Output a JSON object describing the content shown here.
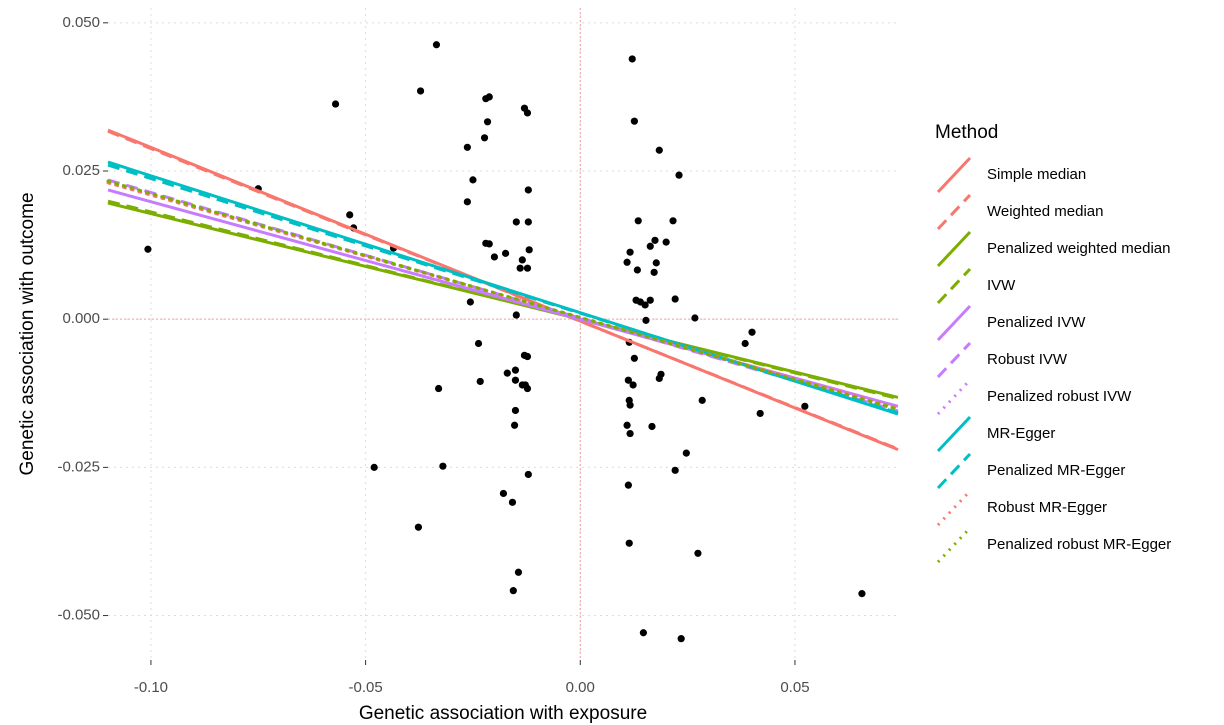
{
  "chart_data": {
    "type": "scatter",
    "x_label": "Genetic association with exposure",
    "y_label": "Genetic association with outcome",
    "legend_title": "Method",
    "xlim": [
      -0.11,
      0.074
    ],
    "ylim": [
      -0.0575,
      0.0525
    ],
    "xticks": [
      {
        "value": -0.1,
        "label": "-0.10"
      },
      {
        "value": -0.05,
        "label": "-0.05"
      },
      {
        "value": 0,
        "label": "0.00"
      },
      {
        "value": 0.05,
        "label": "0.05"
      }
    ],
    "yticks": [
      {
        "value": 0.05,
        "label": "0.050"
      },
      {
        "value": 0.025,
        "label": "0.025"
      },
      {
        "value": 0,
        "label": "0.000"
      },
      {
        "value": -0.025,
        "label": "-0.025"
      },
      {
        "value": -0.05,
        "label": "-0.050"
      }
    ],
    "grid": true,
    "reference_color": "#f4a0a0",
    "hline": 0,
    "vline": 0,
    "points": {
      "color": "#000000",
      "x": [
        -0.1007,
        -0.057,
        -0.075,
        -0.0537,
        -0.0528,
        -0.0435,
        -0.048,
        -0.0372,
        -0.0335,
        -0.0377,
        -0.033,
        -0.032,
        -0.0263,
        -0.025,
        -0.0263,
        -0.0256,
        -0.0237,
        -0.0233,
        -0.0223,
        -0.022,
        -0.0212,
        -0.0216,
        -0.022,
        -0.0212,
        -0.02,
        -0.0174,
        -0.0179,
        -0.017,
        -0.0158,
        -0.0156,
        -0.0151,
        -0.0151,
        -0.0151,
        -0.0153,
        -0.0149,
        -0.0149,
        -0.0144,
        -0.014,
        -0.0135,
        -0.0135,
        -0.013,
        -0.0123,
        -0.013,
        -0.0123,
        -0.0123,
        -0.0121,
        -0.0121,
        -0.0119,
        -0.0128,
        -0.0123,
        -0.0121,
        0.0121,
        0.0126,
        0.0109,
        0.0116,
        0.0114,
        0.0112,
        0.0114,
        0.0116,
        0.0109,
        0.0116,
        0.0112,
        0.0114,
        0.0126,
        0.0123,
        0.013,
        0.0135,
        0.0133,
        0.014,
        0.0147,
        0.0151,
        0.0153,
        0.0163,
        0.0163,
        0.0167,
        0.0172,
        0.0177,
        0.0174,
        0.0184,
        0.0184,
        0.0188,
        0.02,
        0.0216,
        0.0221,
        0.0221,
        0.023,
        0.0235,
        0.0247,
        0.0267,
        0.0274,
        0.0284,
        0.0384,
        0.04,
        0.0419,
        0.0523,
        0.0656
      ],
      "values": [
        0.0118,
        0.0363,
        0.022,
        0.0176,
        0.0154,
        0.012,
        -0.025,
        0.0385,
        0.0463,
        -0.0351,
        -0.0117,
        -0.0248,
        0.029,
        0.0235,
        0.0198,
        0.0029,
        -0.0041,
        -0.0105,
        0.0306,
        0.0372,
        0.0375,
        0.0333,
        0.0128,
        0.0127,
        0.0105,
        0.0111,
        -0.0294,
        -0.0091,
        -0.0309,
        -0.0458,
        -0.0086,
        -0.0103,
        -0.0154,
        -0.0179,
        0.0007,
        0.0164,
        -0.0427,
        0.0086,
        -0.0111,
        0.01,
        0.0356,
        0.0348,
        -0.0061,
        -0.0063,
        0.0086,
        0.0218,
        0.0164,
        0.0117,
        -0.0111,
        -0.0117,
        -0.0262,
        0.0439,
        0.0334,
        0.0096,
        0.0113,
        -0.0039,
        -0.0103,
        -0.0137,
        -0.0145,
        -0.0179,
        -0.0193,
        -0.028,
        -0.0378,
        -0.0066,
        -0.0111,
        0.0032,
        0.0166,
        0.0083,
        0.0029,
        -0.0529,
        0.0024,
        -0.0002,
        0.0032,
        0.0123,
        -0.0181,
        0.0079,
        0.0095,
        0.0133,
        0.0285,
        -0.01,
        -0.0093,
        0.013,
        0.0166,
        0.0034,
        -0.0255,
        0.0243,
        -0.0539,
        -0.0226,
        0.0002,
        -0.0395,
        -0.0137,
        -0.0041,
        -0.0022,
        -0.0159,
        -0.0147,
        -0.0463
      ]
    },
    "series": [
      {
        "name": "Simple median",
        "color": "#F8766D",
        "dash": "solid",
        "x": [
          -0.11,
          0.074
        ],
        "values": [
          0.0319,
          -0.022
        ]
      },
      {
        "name": "Weighted median",
        "color": "#F8766D",
        "dash": "dashed",
        "x": [
          -0.11,
          0.074
        ],
        "values": [
          0.0317,
          -0.0219
        ]
      },
      {
        "name": "Penalized weighted median",
        "color": "#7CAE00",
        "dash": "solid",
        "x": [
          -0.11,
          0.074
        ],
        "values": [
          0.0196,
          -0.0132
        ]
      },
      {
        "name": "IVW",
        "color": "#7CAE00",
        "dash": "dashed",
        "x": [
          -0.11,
          0.074
        ],
        "values": [
          0.0199,
          -0.0134
        ]
      },
      {
        "name": "Penalized IVW",
        "color": "#C77CFF",
        "dash": "solid",
        "x": [
          -0.11,
          0.074
        ],
        "values": [
          0.0218,
          -0.0147
        ]
      },
      {
        "name": "Robust IVW",
        "color": "#C77CFF",
        "dash": "dashed",
        "x": [
          -0.11,
          0.074
        ],
        "values": [
          0.0235,
          -0.0155
        ]
      },
      {
        "name": "Penalized robust IVW",
        "color": "#C77CFF",
        "dash": "dotted",
        "x": [
          -0.11,
          0.074
        ],
        "values": [
          0.0232,
          -0.0153
        ]
      },
      {
        "name": "MR-Egger",
        "color": "#00BFC4",
        "dash": "solid",
        "x": [
          -0.11,
          0.074
        ],
        "values": [
          0.0265,
          -0.016
        ]
      },
      {
        "name": "Penalized MR-Egger",
        "color": "#00BFC4",
        "dash": "dashed",
        "x": [
          -0.11,
          0.074
        ],
        "values": [
          0.026,
          -0.0158
        ]
      },
      {
        "name": "Robust MR-Egger",
        "color": "#F8766D",
        "dash": "dotted",
        "x": [
          -0.11,
          0.074
        ],
        "values": [
          0.023,
          -0.015
        ]
      },
      {
        "name": "Penalized robust MR-Egger",
        "color": "#7CAE00",
        "dash": "dotted",
        "x": [
          -0.11,
          0.074
        ],
        "values": [
          0.0233,
          -0.0152
        ]
      }
    ]
  }
}
